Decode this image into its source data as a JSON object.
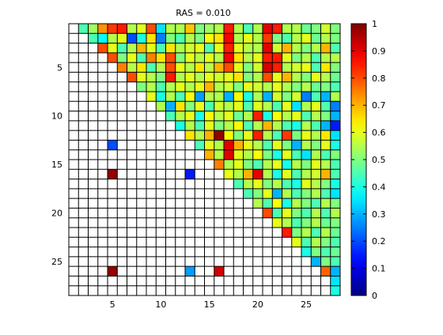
{
  "chart_data": {
    "type": "heatmap",
    "title": "RAS = 0.010",
    "xlabel": "",
    "ylabel": "",
    "n_rows": 28,
    "n_cols": 28,
    "xlim": [
      0.5,
      28.5
    ],
    "ylim": [
      0.5,
      28.5
    ],
    "y_reversed": true,
    "xticks": [
      5,
      10,
      15,
      20,
      25
    ],
    "yticks": [
      5,
      10,
      15,
      20,
      25
    ],
    "colorbar": {
      "min": 0,
      "max": 1,
      "ticks": [
        "0",
        "0.1",
        "0.2",
        "0.3",
        "0.4",
        "0.5",
        "0.6",
        "0.7",
        "0.8",
        "0.9",
        "1"
      ],
      "colormap": "jet"
    },
    "grid": true,
    "matrix": [
      [
        null,
        0.45,
        0.53,
        0.73,
        0.82,
        0.85,
        0.55,
        0.6,
        0.8,
        0.35,
        0.55,
        0.55,
        0.68,
        0.5,
        0.53,
        0.55,
        0.85,
        0.55,
        0.45,
        0.55,
        0.9,
        0.85,
        0.55,
        0.55,
        0.48,
        0.5,
        0.58,
        0.5
      ],
      [
        null,
        null,
        0.45,
        0.38,
        0.55,
        0.6,
        0.2,
        0.4,
        0.65,
        0.25,
        0.5,
        0.45,
        0.55,
        0.5,
        0.62,
        0.65,
        0.88,
        0.55,
        0.6,
        0.55,
        0.82,
        0.5,
        0.45,
        0.55,
        0.6,
        0.48,
        0.55,
        0.5
      ],
      [
        null,
        null,
        null,
        0.8,
        0.6,
        0.45,
        0.55,
        0.7,
        0.6,
        0.45,
        0.65,
        0.55,
        0.58,
        0.6,
        0.45,
        0.6,
        0.85,
        0.6,
        0.55,
        0.55,
        0.9,
        0.58,
        0.7,
        0.55,
        0.5,
        0.55,
        0.7,
        0.45
      ],
      [
        null,
        null,
        null,
        null,
        0.8,
        0.5,
        0.6,
        0.45,
        0.75,
        0.65,
        0.8,
        0.5,
        0.6,
        0.55,
        0.6,
        0.55,
        0.88,
        0.65,
        0.55,
        0.6,
        0.85,
        0.85,
        0.6,
        0.5,
        0.55,
        0.45,
        0.55,
        0.55
      ],
      [
        null,
        null,
        null,
        null,
        null,
        0.75,
        0.55,
        0.65,
        0.45,
        0.55,
        0.8,
        0.6,
        0.55,
        0.65,
        0.55,
        0.7,
        0.8,
        0.6,
        0.5,
        0.58,
        0.92,
        0.85,
        0.55,
        0.58,
        0.6,
        0.45,
        0.65,
        0.5
      ],
      [
        null,
        null,
        null,
        null,
        null,
        null,
        0.8,
        0.6,
        0.55,
        0.5,
        0.85,
        0.55,
        0.6,
        0.55,
        0.6,
        0.58,
        0.6,
        0.65,
        0.5,
        0.55,
        0.8,
        0.6,
        0.7,
        0.55,
        0.5,
        0.6,
        0.55,
        0.48
      ],
      [
        null,
        null,
        null,
        null,
        null,
        null,
        null,
        0.5,
        0.55,
        0.45,
        0.55,
        0.6,
        0.55,
        0.6,
        0.7,
        0.55,
        0.58,
        0.5,
        0.6,
        0.58,
        0.55,
        0.6,
        0.55,
        0.5,
        0.55,
        0.48,
        0.5,
        0.45
      ],
      [
        null,
        null,
        null,
        null,
        null,
        null,
        null,
        null,
        0.6,
        0.4,
        0.55,
        0.45,
        0.62,
        0.28,
        0.55,
        0.55,
        0.3,
        0.62,
        0.4,
        0.55,
        0.3,
        0.58,
        0.5,
        0.58,
        0.25,
        0.45,
        0.3,
        0.55
      ],
      [
        null,
        null,
        null,
        null,
        null,
        null,
        null,
        null,
        null,
        0.55,
        0.3,
        0.65,
        0.5,
        0.6,
        0.45,
        0.58,
        0.55,
        0.6,
        0.45,
        0.6,
        0.55,
        0.45,
        0.6,
        0.35,
        0.55,
        0.6,
        0.45,
        0.25
      ],
      [
        null,
        null,
        null,
        null,
        null,
        null,
        null,
        null,
        null,
        null,
        0.45,
        0.55,
        0.6,
        0.4,
        0.62,
        0.55,
        0.6,
        0.48,
        0.55,
        0.85,
        0.4,
        0.62,
        0.55,
        0.6,
        0.45,
        0.55,
        0.5,
        0.3
      ],
      [
        null,
        null,
        null,
        null,
        null,
        null,
        null,
        null,
        null,
        null,
        null,
        0.4,
        0.55,
        0.45,
        0.6,
        0.5,
        0.55,
        0.62,
        0.45,
        0.55,
        0.7,
        0.55,
        0.45,
        0.4,
        0.55,
        0.45,
        0.3,
        0.15
      ],
      [
        null,
        null,
        null,
        null,
        null,
        null,
        null,
        null,
        null,
        null,
        null,
        null,
        0.65,
        0.55,
        0.7,
        0.98,
        0.62,
        0.5,
        0.6,
        0.85,
        0.55,
        0.45,
        0.82,
        0.5,
        0.6,
        0.55,
        0.65,
        0.35
      ],
      [
        null,
        null,
        null,
        null,
        0.2,
        null,
        null,
        null,
        null,
        null,
        null,
        null,
        null,
        0.45,
        0.6,
        0.55,
        0.9,
        0.7,
        0.6,
        0.55,
        0.45,
        0.6,
        0.5,
        0.3,
        0.55,
        0.5,
        0.6,
        0.4
      ],
      [
        null,
        null,
        null,
        null,
        null,
        null,
        null,
        null,
        null,
        null,
        null,
        null,
        null,
        null,
        0.7,
        0.55,
        0.9,
        0.6,
        0.55,
        0.62,
        0.5,
        0.4,
        0.6,
        0.45,
        0.35,
        0.55,
        0.45,
        0.5
      ],
      [
        null,
        null,
        null,
        null,
        null,
        null,
        null,
        null,
        null,
        null,
        null,
        null,
        null,
        null,
        null,
        0.75,
        0.55,
        0.6,
        0.5,
        0.45,
        0.55,
        0.6,
        0.4,
        0.55,
        0.5,
        0.6,
        0.55,
        0.45
      ],
      [
        null,
        null,
        null,
        null,
        0.98,
        null,
        null,
        null,
        null,
        null,
        null,
        null,
        0.15,
        null,
        null,
        null,
        0.6,
        0.55,
        0.7,
        0.9,
        0.55,
        0.4,
        0.6,
        0.45,
        0.55,
        0.58,
        0.7,
        0.45
      ],
      [
        null,
        null,
        null,
        null,
        null,
        null,
        null,
        null,
        null,
        null,
        null,
        null,
        null,
        null,
        null,
        null,
        null,
        0.45,
        0.55,
        0.6,
        0.5,
        0.55,
        0.45,
        0.4,
        0.6,
        0.55,
        0.5,
        0.4
      ],
      [
        null,
        null,
        null,
        null,
        null,
        null,
        null,
        null,
        null,
        null,
        null,
        null,
        null,
        null,
        null,
        null,
        null,
        null,
        0.45,
        0.5,
        0.6,
        0.3,
        0.55,
        0.45,
        0.5,
        0.55,
        0.45,
        0.35
      ],
      [
        null,
        null,
        null,
        null,
        null,
        null,
        null,
        null,
        null,
        null,
        null,
        null,
        null,
        null,
        null,
        null,
        null,
        null,
        null,
        0.55,
        0.45,
        0.62,
        0.4,
        0.55,
        0.5,
        0.45,
        0.55,
        0.5
      ],
      [
        null,
        null,
        null,
        null,
        null,
        null,
        null,
        null,
        null,
        null,
        null,
        null,
        null,
        null,
        null,
        null,
        null,
        null,
        null,
        null,
        0.8,
        0.45,
        0.6,
        0.5,
        0.45,
        0.55,
        0.45,
        0.55
      ],
      [
        null,
        null,
        null,
        null,
        null,
        null,
        null,
        null,
        null,
        null,
        null,
        null,
        null,
        null,
        null,
        null,
        null,
        null,
        null,
        null,
        null,
        0.6,
        0.55,
        0.45,
        0.5,
        0.55,
        0.48,
        0.5
      ],
      [
        null,
        null,
        null,
        null,
        null,
        null,
        null,
        null,
        null,
        null,
        null,
        null,
        null,
        null,
        null,
        null,
        null,
        null,
        null,
        null,
        null,
        null,
        0.85,
        0.5,
        0.55,
        0.45,
        0.55,
        0.48
      ],
      [
        null,
        null,
        null,
        null,
        null,
        null,
        null,
        null,
        null,
        null,
        null,
        null,
        null,
        null,
        null,
        null,
        null,
        null,
        null,
        null,
        null,
        null,
        null,
        0.6,
        0.45,
        0.55,
        0.5,
        0.45
      ],
      [
        null,
        null,
        null,
        null,
        null,
        null,
        null,
        null,
        null,
        null,
        null,
        null,
        null,
        null,
        null,
        null,
        null,
        null,
        null,
        null,
        null,
        null,
        null,
        null,
        0.4,
        0.5,
        0.45,
        0.48
      ],
      [
        null,
        null,
        null,
        null,
        null,
        null,
        null,
        null,
        null,
        null,
        null,
        null,
        null,
        null,
        null,
        null,
        null,
        null,
        null,
        null,
        null,
        null,
        null,
        null,
        null,
        0.3,
        0.5,
        0.45
      ],
      [
        null,
        null,
        null,
        null,
        0.98,
        null,
        null,
        null,
        null,
        null,
        null,
        null,
        0.28,
        null,
        null,
        0.92,
        null,
        null,
        null,
        null,
        null,
        null,
        null,
        null,
        null,
        null,
        0.78,
        0.3
      ],
      [
        null,
        null,
        null,
        null,
        null,
        null,
        null,
        null,
        null,
        null,
        null,
        null,
        null,
        null,
        null,
        null,
        null,
        null,
        null,
        null,
        null,
        null,
        null,
        null,
        null,
        null,
        null,
        0.35
      ],
      [
        null,
        null,
        null,
        null,
        null,
        null,
        null,
        null,
        null,
        null,
        null,
        null,
        null,
        null,
        null,
        null,
        null,
        null,
        null,
        null,
        null,
        null,
        null,
        null,
        null,
        null,
        null,
        0.4
      ]
    ]
  }
}
